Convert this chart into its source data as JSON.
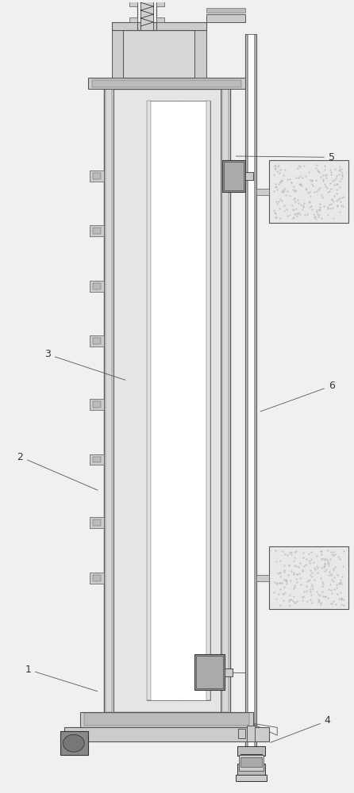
{
  "bg_color": "#f0f0f0",
  "lc": "#555555",
  "dc": "#333333",
  "mc": "#777777",
  "wc": "#ffffff",
  "gc": "#cccccc",
  "dg": "#999999"
}
